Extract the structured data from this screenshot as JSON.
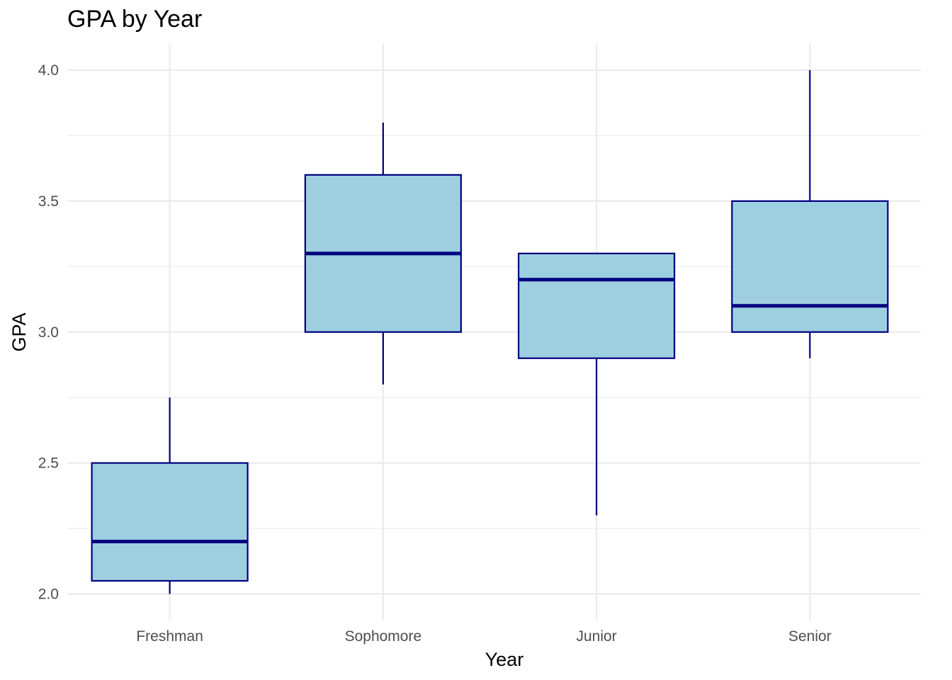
{
  "chart_data": {
    "type": "boxplot",
    "title": "GPA by Year",
    "xlabel": "Year",
    "ylabel": "GPA",
    "categories": [
      "Freshman",
      "Sophomore",
      "Junior",
      "Senior"
    ],
    "boxes": [
      {
        "category": "Freshman",
        "min": 2.0,
        "q1": 2.05,
        "median": 2.2,
        "q3": 2.5,
        "max": 2.75
      },
      {
        "category": "Sophomore",
        "min": 2.8,
        "q1": 3.0,
        "median": 3.3,
        "q3": 3.6,
        "max": 3.8
      },
      {
        "category": "Junior",
        "min": 2.3,
        "q1": 2.9,
        "median": 3.2,
        "q3": 3.3,
        "max": 3.3
      },
      {
        "category": "Senior",
        "min": 2.9,
        "q1": 3.0,
        "median": 3.1,
        "q3": 3.5,
        "max": 4.0
      }
    ],
    "ylim": [
      1.9,
      4.1
    ],
    "yticks": [
      "2.0",
      "2.5",
      "3.0",
      "3.5",
      "4.0"
    ],
    "grid": true,
    "colors": {
      "box_fill": "#9ecfe0",
      "box_stroke": "#000080",
      "grid": "#ebebeb"
    }
  }
}
